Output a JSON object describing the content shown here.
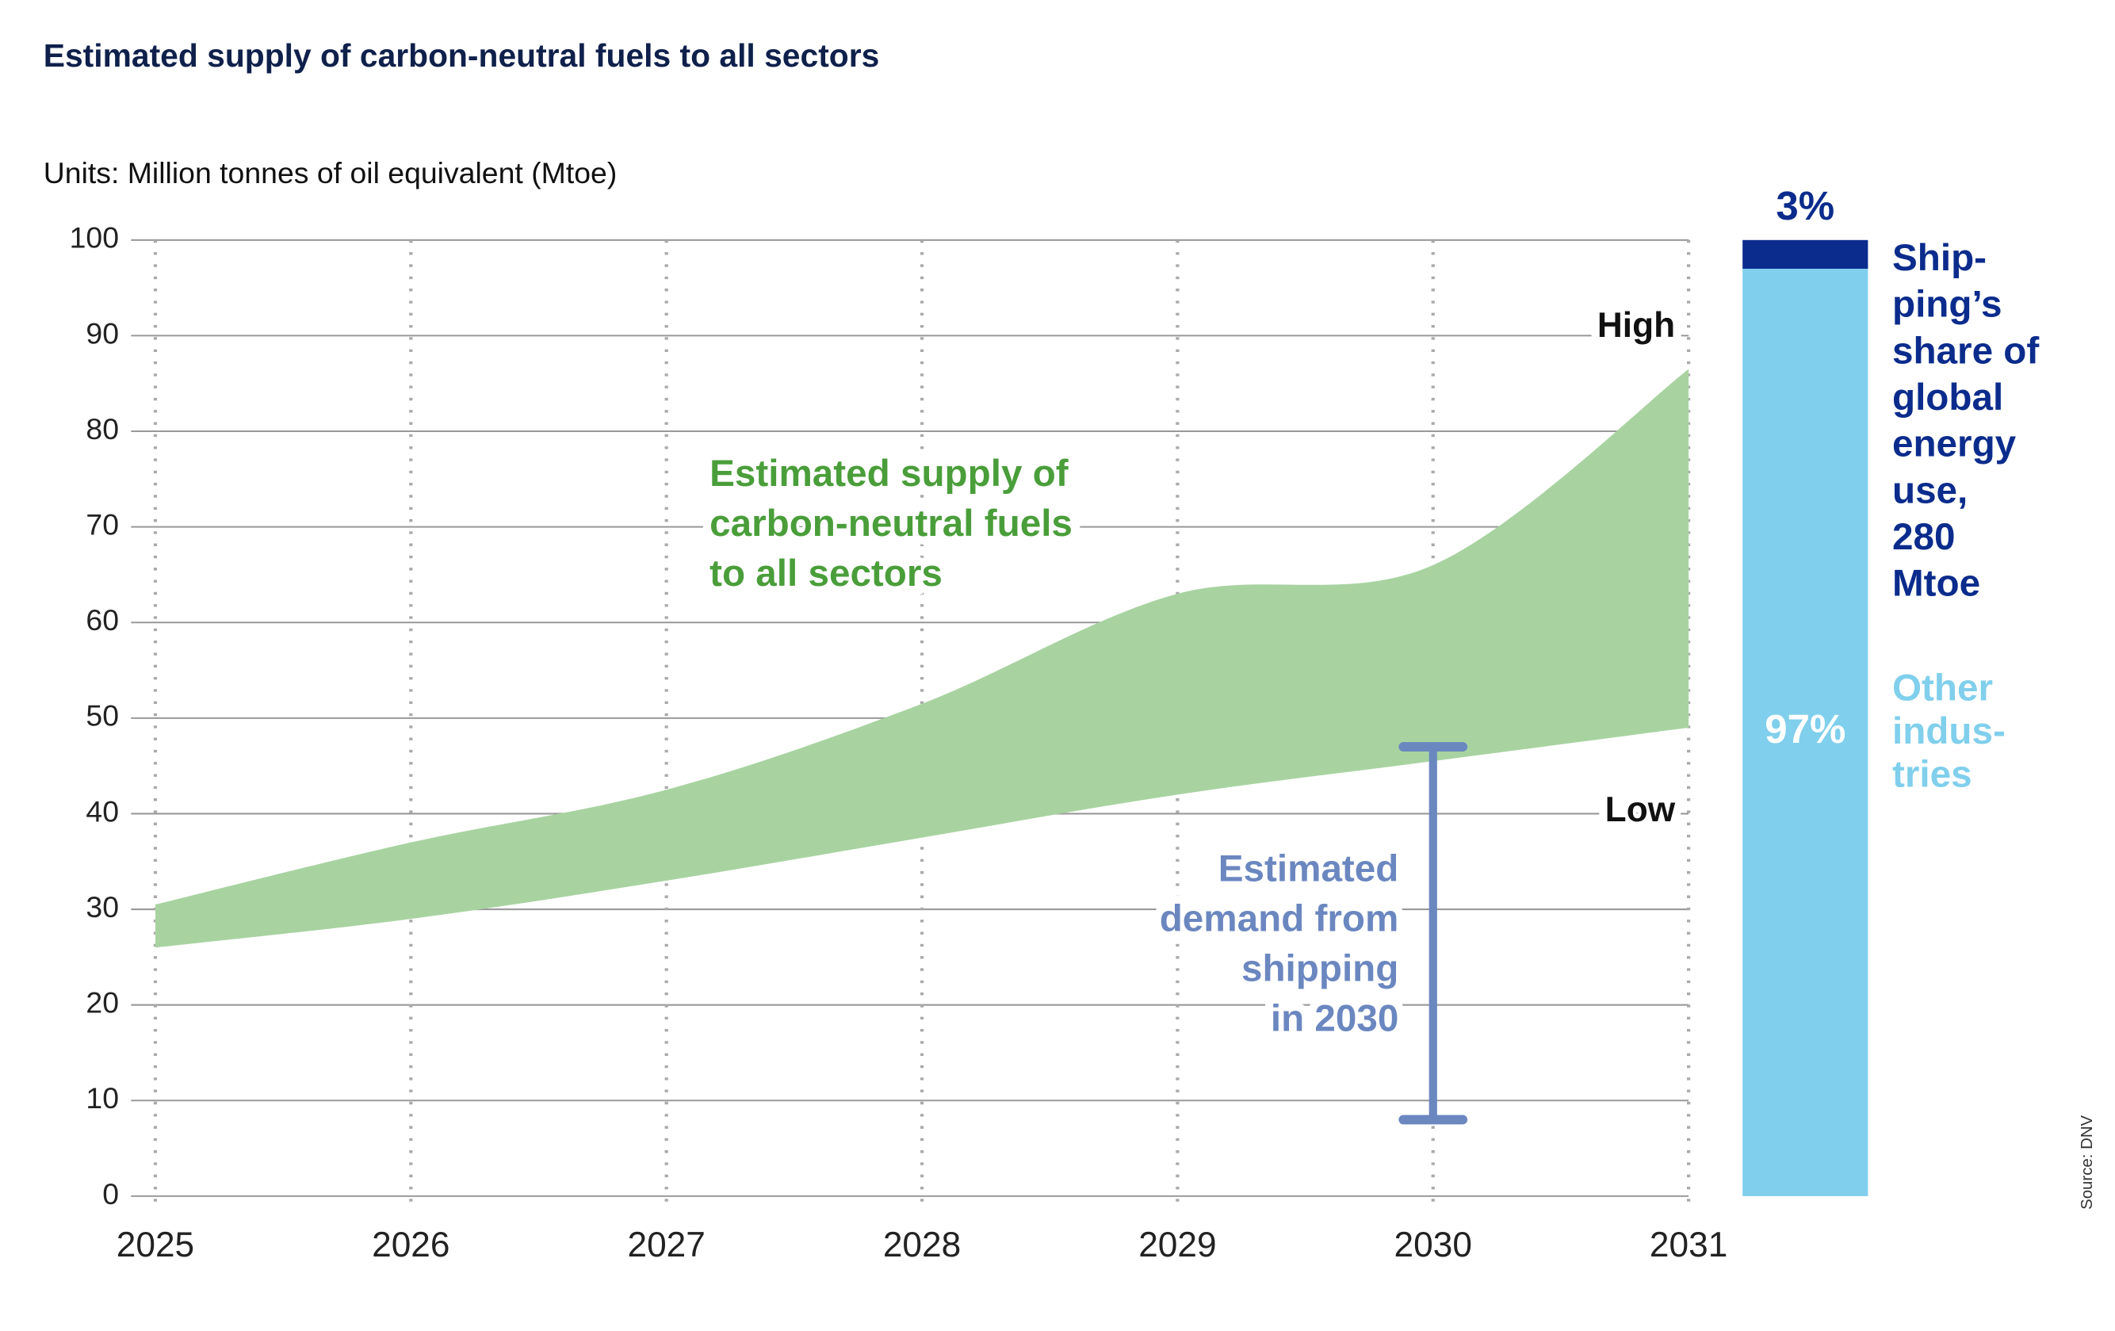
{
  "chart_data": [
    {
      "type": "area_range",
      "title": "Estimated supply of carbon-neutral fuels to all sectors",
      "subtitle": "Units: Million tonnes of oil equivalent (Mtoe)",
      "x": [
        2025,
        2026,
        2027,
        2028,
        2029,
        2030,
        2031
      ],
      "xlim": [
        2025,
        2031
      ],
      "xticks": [
        2025,
        2026,
        2027,
        2028,
        2029,
        2030,
        2031
      ],
      "ylim": [
        0,
        100
      ],
      "yticks": [
        0,
        10,
        20,
        30,
        40,
        50,
        60,
        70,
        80,
        90,
        100
      ],
      "grid": true,
      "color": "#a8d3a1",
      "series": [
        {
          "name": "High",
          "values": [
            30.5,
            37,
            42.5,
            51.5,
            63,
            66,
            86.5
          ]
        },
        {
          "name": "Low",
          "values": [
            26,
            29,
            33,
            37.5,
            42,
            45.5,
            49
          ]
        }
      ],
      "band_label": [
        "Estimated supply of",
        "carbon-neutral fuels",
        "to all sectors"
      ],
      "band_label_color": "#4a9e3a",
      "error_bar": {
        "label": [
          "Estimated",
          "demand from",
          "shipping",
          "in 2030"
        ],
        "x": 2030,
        "low": 8,
        "high": 47,
        "color": "#6b87c0"
      }
    },
    {
      "type": "stacked_bar",
      "ylim": [
        0,
        100
      ],
      "series": [
        {
          "label_lines": [
            "Other",
            "indus-",
            "tries"
          ],
          "color": "#80cfec",
          "values": [
            97
          ],
          "value_labels": [
            "97%"
          ]
        },
        {
          "label_lines": [
            "Ship-",
            "ping’s",
            "share of",
            "global",
            "energy",
            "use,",
            "280",
            "Mtoe"
          ],
          "color": "#0b2c8c",
          "values": [
            3
          ],
          "value_labels": [
            "3%"
          ]
        }
      ]
    }
  ],
  "source": "Source: DNV"
}
